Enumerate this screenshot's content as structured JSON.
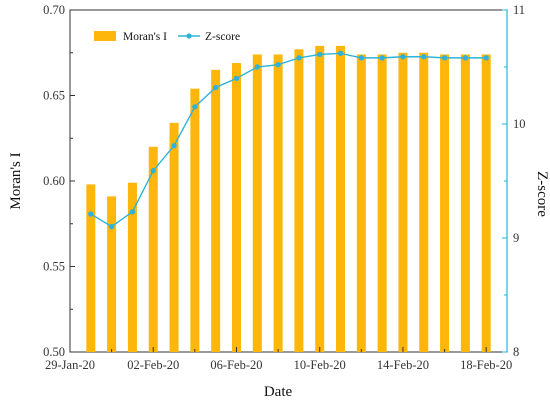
{
  "chart_data": {
    "type": "bar+line",
    "x_dates": [
      "30-Jan-20",
      "31-Jan-20",
      "01-Feb-20",
      "02-Feb-20",
      "03-Feb-20",
      "04-Feb-20",
      "05-Feb-20",
      "06-Feb-20",
      "07-Feb-20",
      "08-Feb-20",
      "09-Feb-20",
      "10-Feb-20",
      "11-Feb-20",
      "12-Feb-20",
      "13-Feb-20",
      "14-Feb-20",
      "15-Feb-20",
      "16-Feb-20",
      "17-Feb-20",
      "18-Feb-20"
    ],
    "x_tick_labels": [
      "29-Jan-20",
      "02-Feb-20",
      "06-Feb-20",
      "10-Feb-20",
      "14-Feb-20",
      "18-Feb-20"
    ],
    "xlabel": "Date",
    "ylabel_left": "Moran's I",
    "ylabel_right": "Z-score",
    "ylim_left": [
      0.5,
      0.7
    ],
    "ylim_right": [
      8,
      11
    ],
    "yticks_left": [
      "0.50",
      "0.55",
      "0.60",
      "0.65",
      "0.70"
    ],
    "yticks_right": [
      "8",
      "9",
      "10",
      "11"
    ],
    "legend_position": "top-left",
    "series": [
      {
        "name": "Moran's I",
        "kind": "bar",
        "color": "#FFB60A",
        "values": [
          0.598,
          0.591,
          0.599,
          0.62,
          0.634,
          0.654,
          0.665,
          0.669,
          0.674,
          0.674,
          0.677,
          0.679,
          0.679,
          0.674,
          0.674,
          0.675,
          0.675,
          0.674,
          0.674,
          0.674
        ]
      },
      {
        "name": "Z-score",
        "kind": "line",
        "color": "#2DB3D8",
        "values": [
          9.21,
          9.1,
          9.23,
          9.59,
          9.81,
          10.15,
          10.32,
          10.4,
          10.5,
          10.52,
          10.58,
          10.61,
          10.62,
          10.58,
          10.58,
          10.59,
          10.59,
          10.58,
          10.58,
          10.58
        ]
      }
    ]
  }
}
